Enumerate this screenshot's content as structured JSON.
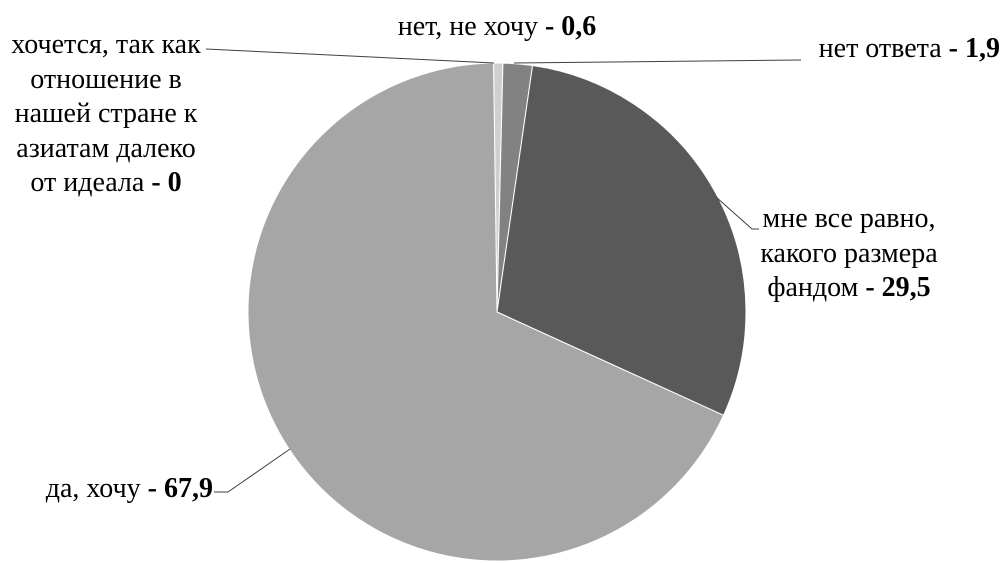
{
  "chart_data": {
    "type": "pie",
    "title": "",
    "label_separator": "-",
    "slices": [
      {
        "label": "нет, не хочу",
        "value": 0.6,
        "value_label": "0,6",
        "color": "#cfcfcf"
      },
      {
        "label": "нет ответа",
        "value": 1.9,
        "value_label": "1,9",
        "color": "#828282"
      },
      {
        "label": "мне все равно, какого размера фандом",
        "value": 29.5,
        "value_label": "29,5",
        "color": "#595959"
      },
      {
        "label": "да, хочу",
        "value": 67.9,
        "value_label": "67,9",
        "color": "#a6a6a6"
      },
      {
        "label": "хочется, так как отношение в нашей стране к азиатам далеко от идеала",
        "value": 0,
        "value_label": "0",
        "color": "#d9d9d9"
      }
    ]
  }
}
